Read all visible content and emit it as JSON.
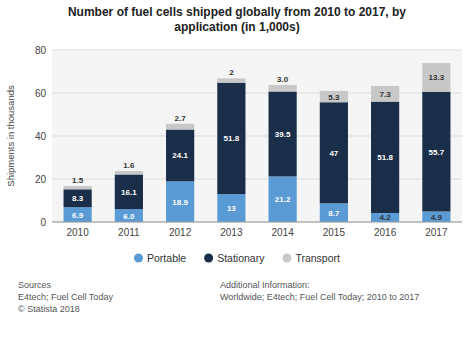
{
  "chart_data": {
    "type": "bar",
    "stacked": true,
    "title": "Number of fuel cells shipped globally from 2010 to 2017, by\napplication (in 1,000s)",
    "categories": [
      "2010",
      "2011",
      "2012",
      "2013",
      "2014",
      "2015",
      "2016",
      "2017"
    ],
    "series": [
      {
        "name": "Portable",
        "color": "#5b9bd5",
        "values": [
          6.9,
          6.0,
          18.9,
          13.0,
          21.2,
          8.7,
          4.2,
          4.9
        ],
        "value_labels": [
          "6.9",
          "6.0",
          "18.9",
          "13",
          "21.2",
          "8.7",
          "4.2",
          "4.9"
        ]
      },
      {
        "name": "Stationary",
        "color": "#1a2e4a",
        "values": [
          8.3,
          16.1,
          24.1,
          51.8,
          39.5,
          47.0,
          51.8,
          55.7
        ],
        "value_labels": [
          "8.3",
          "16.1",
          "24.1",
          "51.8",
          "39.5",
          "47",
          "51.8",
          "55.7"
        ]
      },
      {
        "name": "Transport",
        "color": "#c8c8c8",
        "values": [
          1.5,
          1.6,
          2.7,
          2.0,
          3.0,
          5.3,
          7.3,
          13.3
        ],
        "value_labels": [
          "1.5",
          "1.6",
          "2.7",
          "2",
          "3.0",
          "5.3",
          "7.3",
          "13.3"
        ]
      }
    ],
    "ylabel": "Shipments in thousands",
    "ylim": [
      0,
      80
    ],
    "yticks": [
      0,
      20,
      40,
      60,
      80
    ],
    "grid": true,
    "data_labels": true,
    "legend": "bottom",
    "annotations": [
      "Sources\nE4tech; Fuel Cell Today\n© Statista 2018",
      "Additional Information:\nWorldwide; E4tech; Fuel Cell Today; 2010 to 2017"
    ]
  }
}
